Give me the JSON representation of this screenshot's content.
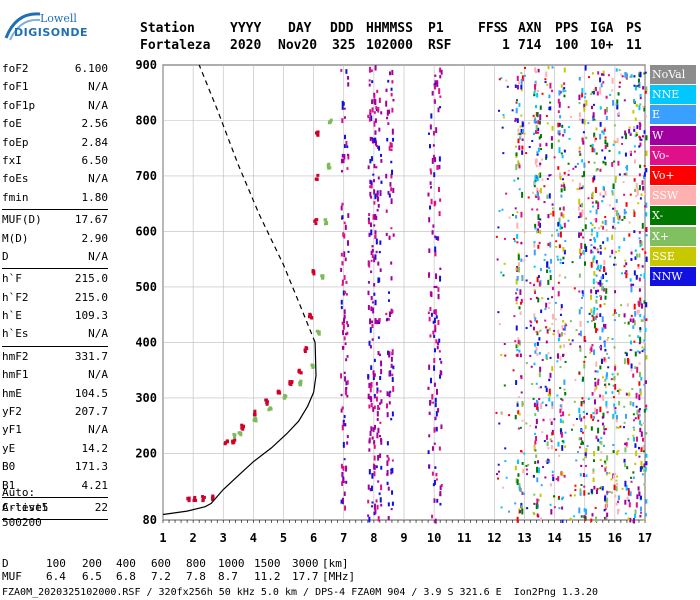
{
  "logo": {
    "line1": "Lowell",
    "line2": "DIGISONDE"
  },
  "header": {
    "labels": [
      "Station",
      "YYYY",
      "DAY",
      "DDD",
      "HHMMSS",
      "P1",
      "FFS",
      "S",
      "AXN",
      "PPS",
      "IGA",
      "PS"
    ],
    "values": [
      "Fortaleza",
      "2020",
      "Nov20",
      "325",
      "102000",
      "RSF",
      "1",
      "714",
      "100",
      "10+",
      "11"
    ]
  },
  "params": [
    {
      "k": "foF2",
      "v": "6.100"
    },
    {
      "k": "foF1",
      "v": "N/A"
    },
    {
      "k": "foF1p",
      "v": "N/A"
    },
    {
      "k": "foE",
      "v": "2.56"
    },
    {
      "k": "foEp",
      "v": "2.84"
    },
    {
      "k": "fxI",
      "v": "6.50"
    },
    {
      "k": "foEs",
      "v": "N/A"
    },
    {
      "k": "fmin",
      "v": "1.80"
    },
    {
      "sep": true
    },
    {
      "k": "MUF(D)",
      "v": "17.67"
    },
    {
      "k": "M(D)",
      "v": "2.90"
    },
    {
      "k": "D",
      "v": "N/A"
    },
    {
      "sep": true
    },
    {
      "k": "h`F",
      "v": "215.0"
    },
    {
      "k": "h`F2",
      "v": "215.0"
    },
    {
      "k": "h`E",
      "v": "109.3"
    },
    {
      "k": "h`Es",
      "v": "N/A"
    },
    {
      "sep": true
    },
    {
      "k": "hmF2",
      "v": "331.7"
    },
    {
      "k": "hmF1",
      "v": "N/A"
    },
    {
      "k": "hmE",
      "v": "104.5"
    },
    {
      "k": "yF2",
      "v": "207.7"
    },
    {
      "k": "yF1",
      "v": "N/A"
    },
    {
      "k": "yE",
      "v": "14.2"
    },
    {
      "k": "B0",
      "v": "171.3"
    },
    {
      "k": "B1",
      "v": "4.21"
    },
    {
      "sep": true
    },
    {
      "k": "C-level",
      "v": "22"
    },
    {
      "sep": true
    }
  ],
  "autoscale": {
    "line1": "Auto:",
    "line2": "Artist5",
    "line3": "500200"
  },
  "legend": [
    {
      "label": "NoVal",
      "color": "#8c8c8c"
    },
    {
      "label": "NNE",
      "color": "#00c8ff"
    },
    {
      "label": "E",
      "color": "#3aa0ff"
    },
    {
      "label": "W",
      "color": "#a000a0"
    },
    {
      "label": "Vo-",
      "color": "#e0108a"
    },
    {
      "label": "Vo+",
      "color": "#ff0000"
    },
    {
      "label": "SSW",
      "color": "#ffb0b0"
    },
    {
      "label": "X-",
      "color": "#007800"
    },
    {
      "label": "X+",
      "color": "#80c060"
    },
    {
      "label": "SSE",
      "color": "#c8c800"
    },
    {
      "label": "NNW",
      "color": "#1010e0"
    }
  ],
  "footer": {
    "d_label": "D",
    "d_values": [
      "100",
      "200",
      "400",
      "600",
      "800",
      "1000",
      "1500",
      "3000"
    ],
    "d_unit": "[km]",
    "muf_label": "MUF",
    "muf_values": [
      "6.4",
      "6.5",
      "6.8",
      "7.2",
      "7.8",
      "8.7",
      "11.2",
      "17.7"
    ],
    "muf_unit": "[MHz]",
    "info": "FZA0M_2020325102000.RSF / 320fx256h 50 kHz 5.0 km / DPS-4 FZA0M 904 / 3.9 S 321.6 E  Ion2Png 1.3.20"
  },
  "chart_data": {
    "type": "scatter",
    "xlim": [
      1,
      17
    ],
    "ylim": [
      80,
      900
    ],
    "x_ticks": [
      1,
      2,
      3,
      4,
      5,
      6,
      7,
      8,
      9,
      10,
      11,
      12,
      13,
      14,
      15,
      16,
      17
    ],
    "y_ticks": [
      80,
      200,
      300,
      400,
      500,
      600,
      700,
      800,
      900
    ],
    "grid": true,
    "legend_placement": "right",
    "o_trace": [
      {
        "x": 1.8,
        "y": 120
      },
      {
        "x": 2.0,
        "y": 120
      },
      {
        "x": 2.3,
        "y": 121
      },
      {
        "x": 2.6,
        "y": 123
      },
      {
        "x": 3.05,
        "y": 222
      },
      {
        "x": 3.3,
        "y": 225
      },
      {
        "x": 3.6,
        "y": 250
      },
      {
        "x": 4.0,
        "y": 275
      },
      {
        "x": 4.4,
        "y": 295
      },
      {
        "x": 4.8,
        "y": 315
      },
      {
        "x": 5.2,
        "y": 330
      },
      {
        "x": 5.5,
        "y": 350
      },
      {
        "x": 5.7,
        "y": 390
      },
      {
        "x": 5.85,
        "y": 450
      },
      {
        "x": 5.95,
        "y": 530
      },
      {
        "x": 6.02,
        "y": 620
      },
      {
        "x": 6.06,
        "y": 700
      },
      {
        "x": 6.08,
        "y": 780
      }
    ],
    "x_trace": [
      {
        "x": 3.3,
        "y": 235
      },
      {
        "x": 3.5,
        "y": 240
      },
      {
        "x": 4.0,
        "y": 265
      },
      {
        "x": 4.5,
        "y": 285
      },
      {
        "x": 5.0,
        "y": 305
      },
      {
        "x": 5.5,
        "y": 330
      },
      {
        "x": 5.9,
        "y": 360
      },
      {
        "x": 6.1,
        "y": 420
      },
      {
        "x": 6.25,
        "y": 520
      },
      {
        "x": 6.35,
        "y": 620
      },
      {
        "x": 6.45,
        "y": 720
      },
      {
        "x": 6.5,
        "y": 800
      }
    ],
    "profile_solid": [
      {
        "x": 1.0,
        "y": 90
      },
      {
        "x": 1.8,
        "y": 96
      },
      {
        "x": 2.4,
        "y": 104
      },
      {
        "x": 2.6,
        "y": 110
      },
      {
        "x": 3.0,
        "y": 135
      },
      {
        "x": 3.5,
        "y": 160
      },
      {
        "x": 4.0,
        "y": 185
      },
      {
        "x": 4.6,
        "y": 210
      },
      {
        "x": 5.1,
        "y": 235
      },
      {
        "x": 5.5,
        "y": 258
      },
      {
        "x": 5.8,
        "y": 285
      },
      {
        "x": 6.0,
        "y": 310
      },
      {
        "x": 6.08,
        "y": 340
      },
      {
        "x": 6.05,
        "y": 400
      },
      {
        "x": 5.6,
        "y": 460
      },
      {
        "x": 5.0,
        "y": 540
      },
      {
        "x": 4.2,
        "y": 630
      },
      {
        "x": 3.5,
        "y": 720
      },
      {
        "x": 2.8,
        "y": 820
      },
      {
        "x": 2.2,
        "y": 900
      }
    ],
    "noise_columns": [
      7.0,
      7.9,
      8.1,
      8.5,
      9.9,
      10.1,
      12.8,
      13.4,
      13.8,
      14.2,
      14.9,
      15.3,
      15.6,
      16.0,
      16.4,
      16.7,
      16.9
    ]
  }
}
